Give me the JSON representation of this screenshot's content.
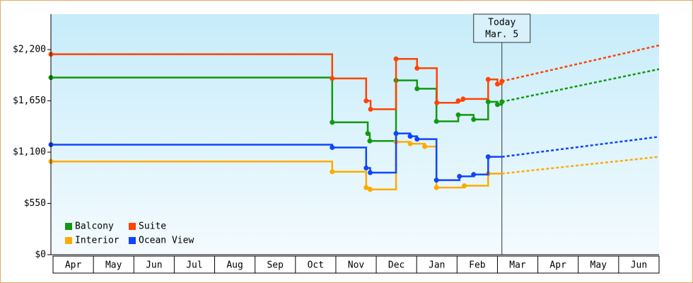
{
  "chart_data": {
    "type": "step-line",
    "xlim": [
      0,
      15
    ],
    "xticks": [
      {
        "value": 0.5,
        "label": "Apr"
      },
      {
        "value": 1.5,
        "label": "May"
      },
      {
        "value": 2.5,
        "label": "Jun"
      },
      {
        "value": 3.5,
        "label": "Jul"
      },
      {
        "value": 4.5,
        "label": "Aug"
      },
      {
        "value": 5.5,
        "label": "Sep"
      },
      {
        "value": 6.5,
        "label": "Oct"
      },
      {
        "value": 7.5,
        "label": "Nov"
      },
      {
        "value": 8.5,
        "label": "Dec"
      },
      {
        "value": 9.5,
        "label": "Jan"
      },
      {
        "value": 10.5,
        "label": "Feb"
      },
      {
        "value": 11.5,
        "label": "Mar"
      },
      {
        "value": 12.5,
        "label": "Apr"
      },
      {
        "value": 13.5,
        "label": "May"
      },
      {
        "value": 14.5,
        "label": "Jun"
      }
    ],
    "ylim": [
      0,
      2580
    ],
    "yticks": [
      {
        "value": 0,
        "label": "$0"
      },
      {
        "value": 550,
        "label": "$550"
      },
      {
        "value": 1100,
        "label": "$1,100"
      },
      {
        "value": 1650,
        "label": "$1,650"
      },
      {
        "value": 2200,
        "label": "$2,200"
      }
    ],
    "today": {
      "x": 11.11,
      "label": [
        "Today",
        "Mar. 5"
      ]
    },
    "forecast_x": [
      11.11,
      15
    ],
    "series": [
      {
        "name": "Balcony",
        "color": "#119911",
        "x": [
          0,
          6.91,
          7.79,
          7.84,
          8.49,
          9.01,
          9.49,
          10.03,
          10.41,
          10.77,
          11.0,
          11.11
        ],
        "values": [
          1900,
          1420,
          1300,
          1220,
          1870,
          1780,
          1430,
          1500,
          1450,
          1640,
          1610,
          1640
        ],
        "forecast": [
          1640,
          1990
        ]
      },
      {
        "name": "Suite",
        "color": "#ff4400",
        "x": [
          0,
          6.91,
          7.75,
          7.86,
          8.49,
          9.01,
          9.5,
          10.03,
          10.15,
          10.77,
          11.0,
          11.11
        ],
        "values": [
          2150,
          1890,
          1650,
          1560,
          2100,
          2000,
          1630,
          1650,
          1670,
          1880,
          1830,
          1860
        ],
        "forecast": [
          1860,
          2245
        ]
      },
      {
        "name": "Interior",
        "color": "#ffaa00",
        "x": [
          0,
          6.91,
          7.75,
          7.85,
          8.49,
          8.84,
          9.2,
          9.49,
          10.18,
          10.77
        ],
        "values": [
          1000,
          890,
          720,
          700,
          1210,
          1190,
          1160,
          720,
          740,
          870
        ],
        "forecast": [
          870,
          1050
        ]
      },
      {
        "name": "Ocean View",
        "color": "#1144ff",
        "x": [
          0,
          6.91,
          7.75,
          7.85,
          8.49,
          8.84,
          9.01,
          9.49,
          10.06,
          10.41,
          10.77
        ],
        "values": [
          1180,
          1150,
          930,
          880,
          1300,
          1270,
          1240,
          800,
          840,
          860,
          1050
        ],
        "forecast": [
          1050,
          1265
        ]
      }
    ]
  }
}
